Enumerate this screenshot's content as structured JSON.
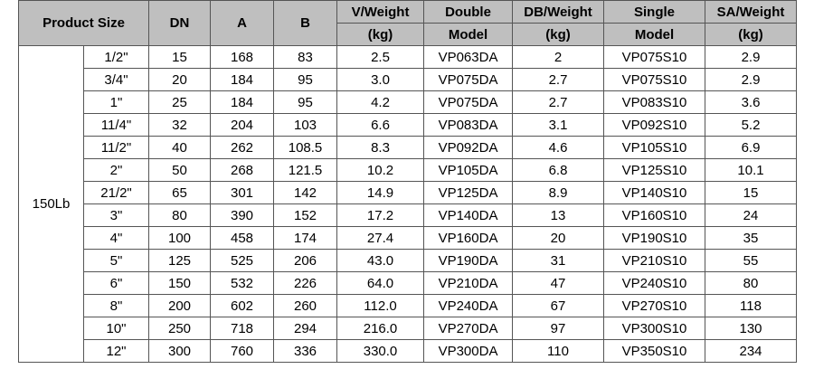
{
  "table": {
    "header": {
      "top": [
        "Product Size",
        "DN",
        "A",
        "B",
        "V/Weight",
        "Double",
        "DB/Weight",
        "Single",
        "SA/Weight"
      ],
      "bottom": [
        "(kg)",
        "Model",
        "(kg)",
        "Model",
        "(kg)"
      ]
    },
    "group": "150Lb",
    "rows": [
      [
        "1/2\"",
        "15",
        "168",
        "83",
        "2.5",
        "VP063DA",
        "2",
        "VP075S10",
        "2.9"
      ],
      [
        "3/4\"",
        "20",
        "184",
        "95",
        "3.0",
        "VP075DA",
        "2.7",
        "VP075S10",
        "2.9"
      ],
      [
        "1\"",
        "25",
        "184",
        "95",
        "4.2",
        "VP075DA",
        "2.7",
        "VP083S10",
        "3.6"
      ],
      [
        "11/4\"",
        "32",
        "204",
        "103",
        "6.6",
        "VP083DA",
        "3.1",
        "VP092S10",
        "5.2"
      ],
      [
        "11/2\"",
        "40",
        "262",
        "108.5",
        "8.3",
        "VP092DA",
        "4.6",
        "VP105S10",
        "6.9"
      ],
      [
        "2\"",
        "50",
        "268",
        "121.5",
        "10.2",
        "VP105DA",
        "6.8",
        "VP125S10",
        "10.1"
      ],
      [
        "21/2\"",
        "65",
        "301",
        "142",
        "14.9",
        "VP125DA",
        "8.9",
        "VP140S10",
        "15"
      ],
      [
        "3\"",
        "80",
        "390",
        "152",
        "17.2",
        "VP140DA",
        "13",
        "VP160S10",
        "24"
      ],
      [
        "4\"",
        "100",
        "458",
        "174",
        "27.4",
        "VP160DA",
        "20",
        "VP190S10",
        "35"
      ],
      [
        "5\"",
        "125",
        "525",
        "206",
        "43.0",
        "VP190DA",
        "31",
        "VP210S10",
        "55"
      ],
      [
        "6\"",
        "150",
        "532",
        "226",
        "64.0",
        "VP210DA",
        "47",
        "VP240S10",
        "80"
      ],
      [
        "8\"",
        "200",
        "602",
        "260",
        "112.0",
        "VP240DA",
        "67",
        "VP270S10",
        "118"
      ],
      [
        "10\"",
        "250",
        "718",
        "294",
        "216.0",
        "VP270DA",
        "97",
        "VP300S10",
        "130"
      ],
      [
        "12\"",
        "300",
        "760",
        "336",
        "330.0",
        "VP300DA",
        "110",
        "VP350S10",
        "234"
      ]
    ]
  }
}
